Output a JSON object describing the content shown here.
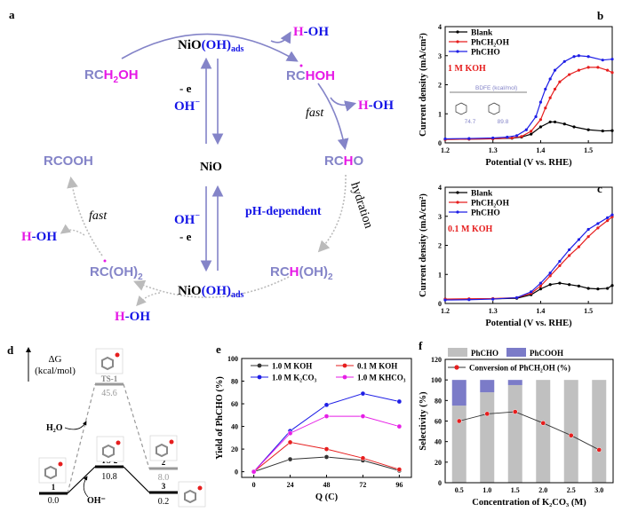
{
  "panel_labels": {
    "a": "a",
    "b": "b",
    "c": "c",
    "d": "d",
    "e": "e",
    "f": "f"
  },
  "scheme": {
    "nio_top": "NiO",
    "oh_ads": "(OH)",
    "ads_sub": "ads",
    "nio_center": "NiO",
    "rch2oh": {
      "a": "RC",
      "b": "H",
      "sub": "2",
      "c": "OH"
    },
    "rchoh": {
      "a": "RC",
      "b": "HOH"
    },
    "rcho": {
      "a": "RC",
      "b": "H",
      "c": "O"
    },
    "rch_oh2": {
      "a": "RC",
      "b": "H",
      "c": "(OH)",
      "sub": "2"
    },
    "rc_oh2": {
      "a": "RC(OH)",
      "sub": "2"
    },
    "rcooh": "RCOOH",
    "h": "H",
    "oh": "-OH",
    "minus_e": "- e",
    "oh_minus": "OH",
    "fast": "fast",
    "ph_dependent": "pH-dependent",
    "hydration": "hydration",
    "colors": {
      "purple": "#8484c8",
      "magenta": "#e619e6",
      "blue": "#1414e6",
      "gray": "#b4b4b4"
    }
  },
  "energy_diagram": {
    "axis_label": "ΔG",
    "unit": "(kcal/mol)",
    "states": [
      {
        "label": "1",
        "value": "0.0"
      },
      {
        "label": "TS-1",
        "value": "45.6"
      },
      {
        "label": "TS-2",
        "value": "10.8"
      },
      {
        "label": "2",
        "value": "8.0"
      },
      {
        "label": "3",
        "value": "0.2"
      }
    ],
    "h2o": "H₂O",
    "oh_minus": "OH⁻"
  },
  "chart_data": [
    {
      "id": "b",
      "type": "line",
      "xlabel": "Potential (V vs. RHE)",
      "ylabel": "Current density (mA/cm²)",
      "xlim": [
        1.2,
        1.55
      ],
      "ylim": [
        0,
        4
      ],
      "xticks": [
        "1.2",
        "1.3",
        "1.4",
        "1.5"
      ],
      "yticks": [
        "0",
        "1",
        "2",
        "3",
        "4"
      ],
      "annotation": "1 M KOH",
      "inset": {
        "title": "BDFE (kcal/mol)",
        "values": [
          "74.7",
          "89.8"
        ]
      },
      "series": [
        {
          "name": "Blank",
          "color": "#000000",
          "x": [
            1.2,
            1.25,
            1.3,
            1.34,
            1.36,
            1.38,
            1.4,
            1.42,
            1.43,
            1.45,
            1.47,
            1.5,
            1.53,
            1.55
          ],
          "y": [
            0.12,
            0.13,
            0.14,
            0.16,
            0.2,
            0.3,
            0.55,
            0.72,
            0.72,
            0.65,
            0.55,
            0.45,
            0.41,
            0.42
          ]
        },
        {
          "name": "PhCH₂OH",
          "color": "#e61e1e",
          "x": [
            1.2,
            1.25,
            1.3,
            1.34,
            1.36,
            1.38,
            1.4,
            1.41,
            1.42,
            1.43,
            1.44,
            1.46,
            1.48,
            1.5,
            1.52,
            1.54,
            1.55
          ],
          "y": [
            0.12,
            0.13,
            0.14,
            0.17,
            0.22,
            0.4,
            0.8,
            1.2,
            1.55,
            1.85,
            2.1,
            2.35,
            2.5,
            2.6,
            2.6,
            2.5,
            2.42
          ]
        },
        {
          "name": "PhCHO",
          "color": "#1e1ee6",
          "x": [
            1.2,
            1.25,
            1.3,
            1.33,
            1.35,
            1.37,
            1.39,
            1.4,
            1.41,
            1.42,
            1.43,
            1.45,
            1.47,
            1.48,
            1.5,
            1.53,
            1.55
          ],
          "y": [
            0.14,
            0.15,
            0.17,
            0.2,
            0.25,
            0.45,
            0.9,
            1.4,
            1.85,
            2.2,
            2.5,
            2.8,
            2.97,
            3.0,
            2.97,
            2.85,
            2.88
          ]
        }
      ]
    },
    {
      "id": "c",
      "type": "line",
      "xlabel": "Potential (V vs. RHE)",
      "ylabel": "Current density (mA/cm²)",
      "xlim": [
        1.2,
        1.55
      ],
      "ylim": [
        0,
        4
      ],
      "xticks": [
        "1.2",
        "1.3",
        "1.4",
        "1.5"
      ],
      "yticks": [
        "0",
        "1",
        "2",
        "3",
        "4"
      ],
      "annotation": "0.1 M KOH",
      "series": [
        {
          "name": "Blank",
          "color": "#000000",
          "x": [
            1.2,
            1.25,
            1.3,
            1.35,
            1.38,
            1.4,
            1.42,
            1.44,
            1.46,
            1.48,
            1.5,
            1.52,
            1.54,
            1.55
          ],
          "y": [
            0.15,
            0.15,
            0.16,
            0.18,
            0.3,
            0.5,
            0.65,
            0.7,
            0.65,
            0.6,
            0.52,
            0.5,
            0.52,
            0.62
          ]
        },
        {
          "name": "PhCH₂OH",
          "color": "#e61e1e",
          "x": [
            1.2,
            1.25,
            1.3,
            1.35,
            1.38,
            1.4,
            1.42,
            1.44,
            1.46,
            1.48,
            1.5,
            1.52,
            1.54,
            1.55
          ],
          "y": [
            0.15,
            0.16,
            0.17,
            0.2,
            0.35,
            0.6,
            0.95,
            1.3,
            1.65,
            1.95,
            2.3,
            2.6,
            2.85,
            2.98
          ]
        },
        {
          "name": "PhCHO",
          "color": "#1e1ee6",
          "x": [
            1.2,
            1.25,
            1.3,
            1.35,
            1.38,
            1.4,
            1.42,
            1.44,
            1.46,
            1.48,
            1.5,
            1.52,
            1.54,
            1.55
          ],
          "y": [
            0.12,
            0.13,
            0.15,
            0.2,
            0.4,
            0.7,
            1.05,
            1.45,
            1.85,
            2.2,
            2.55,
            2.75,
            2.95,
            3.05
          ]
        }
      ]
    },
    {
      "id": "e",
      "type": "line",
      "xlabel": "Q (C)",
      "ylabel": "Yield of PhCHO (%)",
      "xlim": [
        -8,
        104
      ],
      "ylim": [
        -5,
        100
      ],
      "xticks": [
        "0",
        "24",
        "48",
        "72",
        "96"
      ],
      "yticks": [
        "0",
        "20",
        "40",
        "60",
        "80",
        "100"
      ],
      "x": [
        0,
        24,
        48,
        72,
        96
      ],
      "series": [
        {
          "name": "1.0 M KOH",
          "color": "#333333",
          "values": [
            0,
            11,
            13,
            10,
            1
          ]
        },
        {
          "name": "0.1 M KOH",
          "color": "#e61e1e",
          "values": [
            0,
            26,
            20,
            12,
            2
          ]
        },
        {
          "name": "1.0 M K₂CO₃",
          "color": "#1e1ee6",
          "values": [
            0,
            36,
            59,
            69,
            62
          ]
        },
        {
          "name": "1.0 M KHCO₃",
          "color": "#e61ee6",
          "values": [
            0,
            34,
            49,
            49,
            40
          ]
        }
      ]
    },
    {
      "id": "f",
      "type": "bar",
      "xlabel": "Concentration of K₂CO₃ (M)",
      "ylabel": "Selectivity (%)",
      "ylim": [
        0,
        120
      ],
      "categories": [
        "0.5",
        "1.0",
        "1.5",
        "2.0",
        "2.5",
        "3.0"
      ],
      "yticks": [
        "0",
        "20",
        "40",
        "60",
        "80",
        "100",
        "120"
      ],
      "series": [
        {
          "name": "PhCHO",
          "color": "#c0c0c0",
          "values": [
            75,
            88,
            95,
            100,
            100,
            100
          ]
        },
        {
          "name": "PhCOOH",
          "color": "#7b7bc8",
          "values": [
            25,
            12,
            5,
            0,
            0,
            0
          ]
        },
        {
          "name": "Conversion of PhCH₂OH (%)",
          "color": "#e61e1e",
          "values": [
            60,
            67,
            69,
            58,
            46,
            32
          ]
        }
      ]
    }
  ]
}
